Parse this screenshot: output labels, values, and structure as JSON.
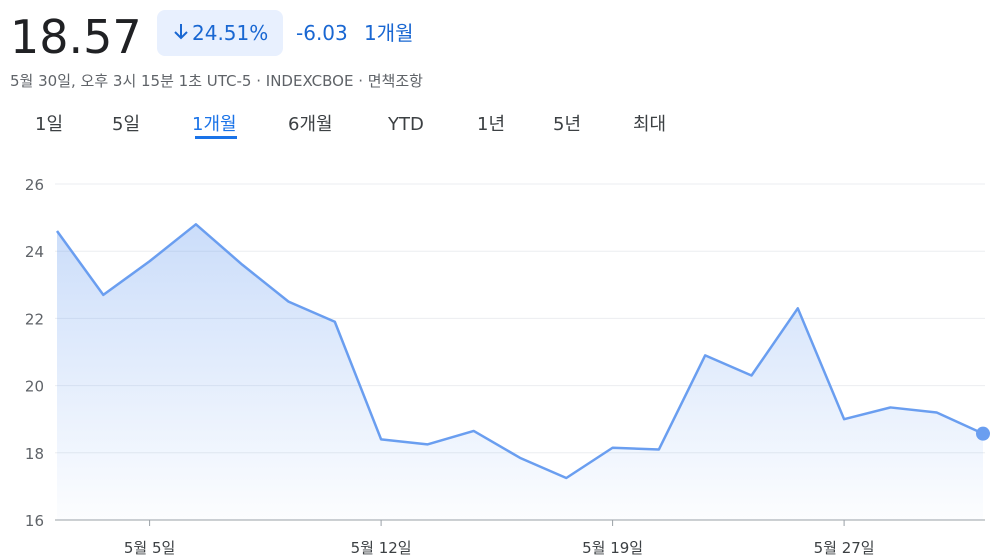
{
  "header": {
    "price": "18.57",
    "change_pct": "24.51%",
    "change_abs": "-6.03",
    "period": "1개월",
    "subtitle": "5월 30일, 오후 3시 15분 1초 UTC-5 · INDEXCBOE · 면책조항"
  },
  "tabs": [
    "1일",
    "5일",
    "1개월",
    "6개월",
    "YTD",
    "1년",
    "5년",
    "최대"
  ],
  "chart_data": {
    "type": "line",
    "categories": [
      null,
      null,
      "5월 5일",
      null,
      null,
      null,
      null,
      "5월 12일",
      null,
      null,
      null,
      null,
      "5월 19일",
      null,
      null,
      null,
      null,
      "5월 27일",
      null,
      null,
      null
    ],
    "values": [
      24.6,
      22.7,
      23.7,
      24.8,
      23.6,
      22.5,
      21.9,
      18.4,
      18.25,
      18.65,
      17.85,
      17.25,
      18.15,
      18.1,
      20.9,
      20.3,
      22.3,
      19.0,
      19.35,
      19.2,
      18.57
    ],
    "color": "#6a9ef0",
    "ylim": [
      16,
      26
    ],
    "yticks": [
      16,
      18,
      20,
      22,
      24,
      26
    ],
    "grid": true
  }
}
